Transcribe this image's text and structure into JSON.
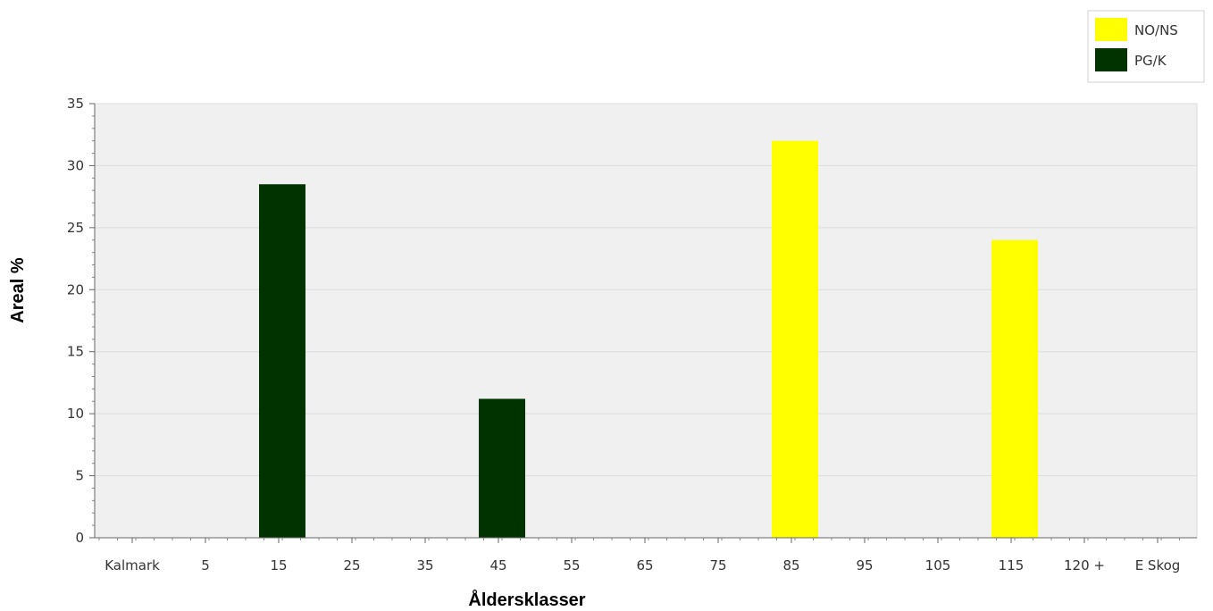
{
  "chart_data": {
    "type": "bar",
    "xlabel": "Åldersklasser",
    "ylabel": "Areal %",
    "ylim": [
      0,
      35
    ],
    "yticks": [
      0,
      5,
      10,
      15,
      20,
      25,
      30,
      35
    ],
    "grid": true,
    "legend_position": "top-right",
    "categories": [
      "Kalmark",
      "5",
      "15",
      "25",
      "35",
      "45",
      "55",
      "65",
      "75",
      "85",
      "95",
      "105",
      "115",
      "120 +",
      "E Skog"
    ],
    "series": [
      {
        "name": "NO/NS",
        "color": "#ffff00",
        "values": [
          0,
          0,
          0,
          0,
          0,
          0,
          0,
          0,
          0,
          32.0,
          0,
          0,
          24.0,
          0,
          0
        ]
      },
      {
        "name": "PG/K",
        "color": "#003300",
        "values": [
          0,
          0,
          28.5,
          0,
          0,
          11.2,
          0,
          0,
          0,
          0,
          0,
          0,
          0,
          0,
          0
        ]
      }
    ]
  }
}
